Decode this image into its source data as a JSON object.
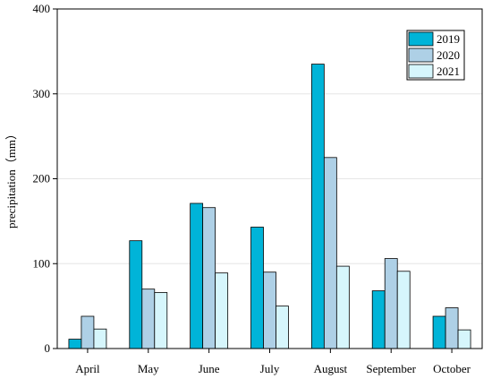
{
  "chart_data": {
    "type": "bar",
    "title": "",
    "xlabel": "",
    "ylabel": "precipitation（mm）",
    "categories": [
      "April",
      "May",
      "June",
      "July",
      "August",
      "September",
      "October"
    ],
    "series": [
      {
        "name": "2019",
        "color": "#00B4D8",
        "values": [
          11,
          127,
          171,
          143,
          335,
          68,
          38
        ]
      },
      {
        "name": "2020",
        "color": "#AED0E6",
        "values": [
          38,
          70,
          166,
          90,
          225,
          106,
          48
        ]
      },
      {
        "name": "2021",
        "color": "#D6F6FC",
        "values": [
          23,
          66,
          89,
          50,
          97,
          91,
          22
        ]
      }
    ],
    "ylim": [
      0,
      400
    ],
    "yticks": [
      0,
      100,
      200,
      300,
      400
    ],
    "grid": true,
    "legend_position": "top-right"
  }
}
